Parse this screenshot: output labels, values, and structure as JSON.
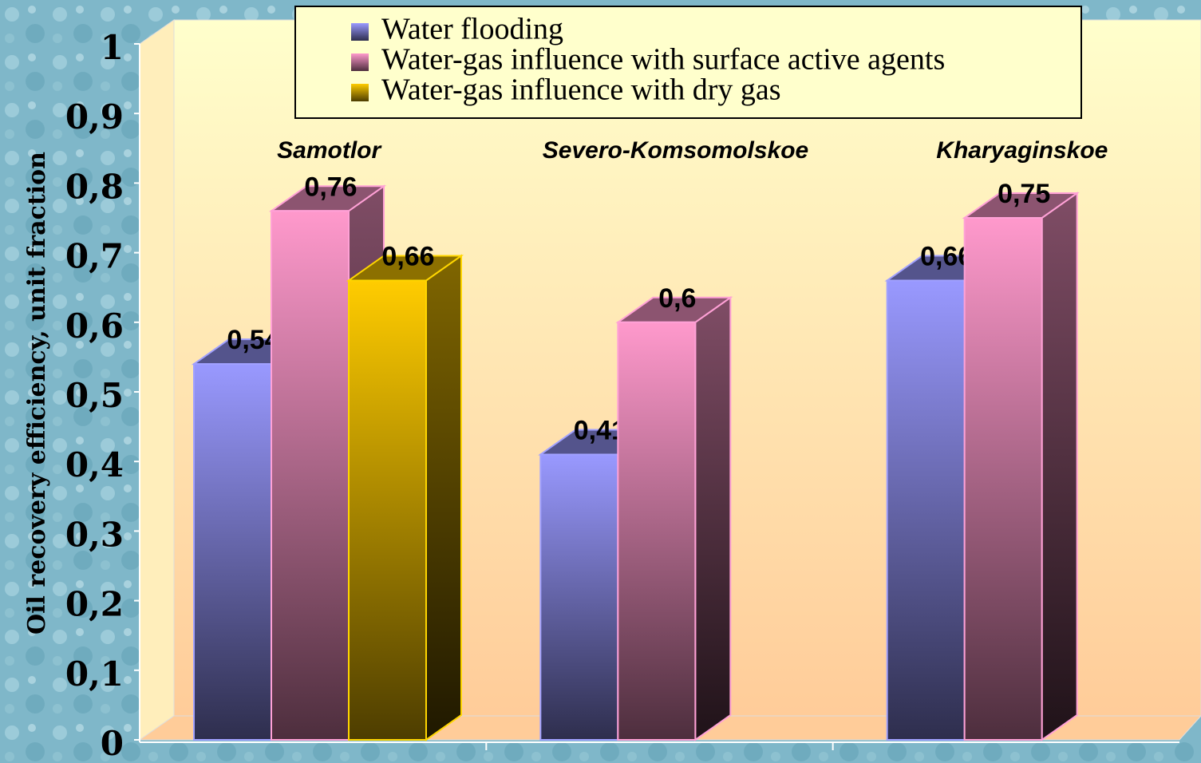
{
  "chart_data": {
    "type": "bar3d",
    "categories": [
      "Samotlor",
      "Severo-Komsomolskoe",
      "Kharyaginskoe"
    ],
    "series": [
      {
        "name": "Water flooding",
        "color": "#9999ff",
        "values": [
          0.54,
          0.41,
          0.66
        ],
        "value_labels": [
          "0,54",
          "0,41",
          "0,66"
        ]
      },
      {
        "name": "Water-gas influence with surface active agents",
        "color": "#ff99cc",
        "values": [
          0.76,
          0.6,
          0.75
        ],
        "value_labels": [
          "0,76",
          "0,6",
          "0,75"
        ]
      },
      {
        "name": "Water-gas influence with dry gas",
        "color": "#ffcc00",
        "values": [
          0.66,
          null,
          null
        ],
        "value_labels": [
          "0,66",
          null,
          null
        ]
      }
    ],
    "y_label": "Oil recovery efficiency, unit fraction",
    "ylim": [
      0,
      1
    ],
    "yticks": [
      0,
      {
        "value": 0.1,
        "label": "0,1"
      },
      {
        "value": 0.2,
        "label": "0,2"
      },
      {
        "value": 0.3,
        "label": "0,3"
      },
      {
        "value": 0.4,
        "label": "0,4"
      },
      {
        "value": 0.5,
        "label": "0,5"
      },
      {
        "value": 0.6,
        "label": "0,6"
      },
      {
        "value": 0.7,
        "label": "0,7"
      },
      {
        "value": 0.8,
        "label": "0,8"
      },
      {
        "value": 0.9,
        "label": "0,9"
      },
      1
    ],
    "legend": "top"
  }
}
